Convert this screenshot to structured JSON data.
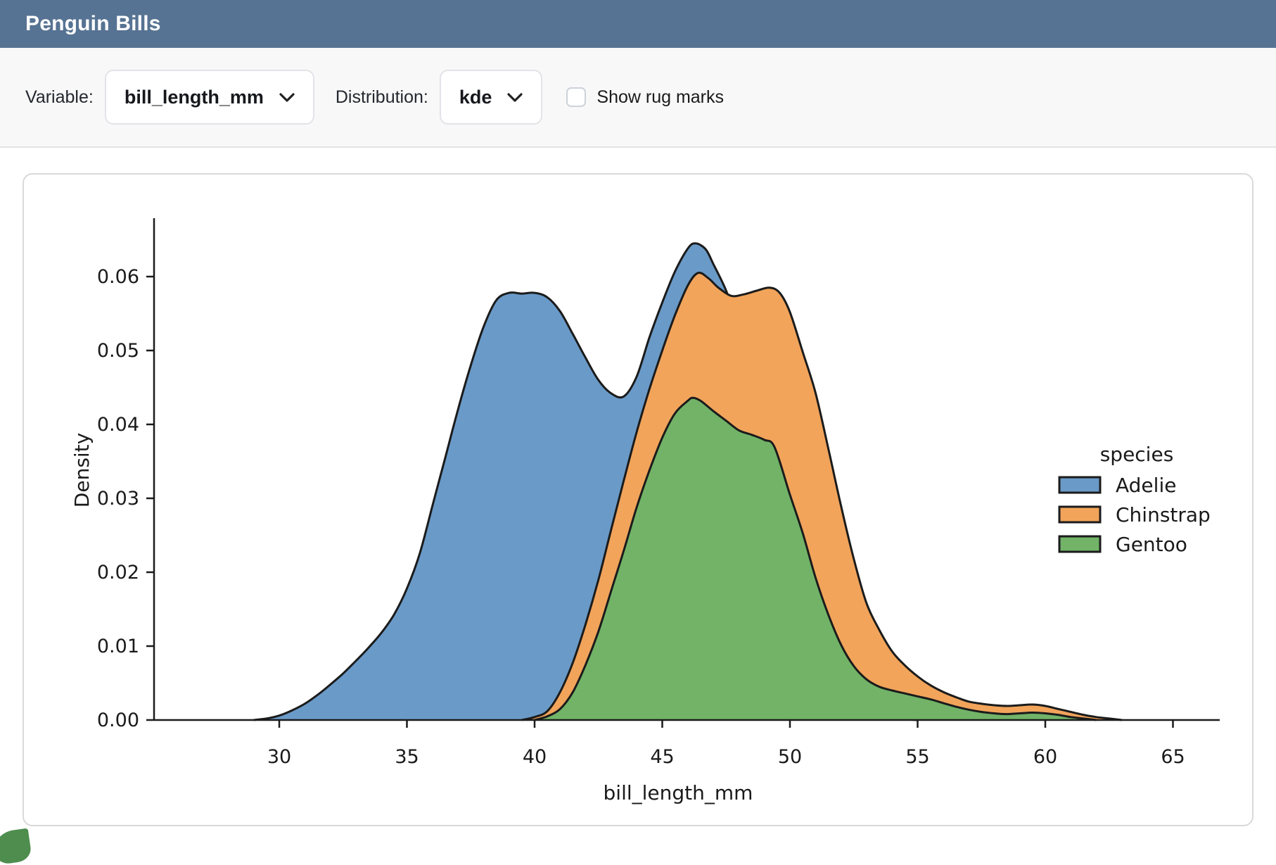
{
  "app": {
    "title": "Penguin Bills"
  },
  "toolbar": {
    "variable_label": "Variable:",
    "variable_value": "bill_length_mm",
    "distribution_label": "Distribution:",
    "distribution_value": "kde",
    "rug_label": "Show rug marks",
    "rug_checked": false
  },
  "colors": {
    "header_bg": "#577393",
    "toolbar_bg": "#f8f8f8",
    "card_border": "#d9d9d9",
    "axis_text": "#1a1a1a",
    "curve_line": "#1b1b1b"
  },
  "chart_data": {
    "type": "area",
    "kind": "kde-density",
    "xlabel": "bill_length_mm",
    "ylabel": "Density",
    "xlim": [
      25,
      67
    ],
    "ylim": [
      0,
      0.068
    ],
    "grid": false,
    "xticks": [
      30,
      35,
      40,
      45,
      50,
      55,
      60,
      65
    ],
    "yticks": {
      "values": [
        0,
        0.01,
        0.02,
        0.03,
        0.04,
        0.05,
        0.06
      ],
      "labels": [
        "0.00",
        "0.01",
        "0.02",
        "0.03",
        "0.04",
        "0.05",
        "0.06"
      ]
    },
    "legend": {
      "title": "species",
      "position": "right"
    },
    "line_color": "#1b1b1b",
    "series": [
      {
        "name": "Adelie",
        "color": "#6A9AC8",
        "points": [
          [
            29.0,
            0
          ],
          [
            29.5,
            0.0002
          ],
          [
            30.0,
            0.0006
          ],
          [
            30.5,
            0.0013
          ],
          [
            31.0,
            0.0022
          ],
          [
            31.5,
            0.0034
          ],
          [
            32.0,
            0.0048
          ],
          [
            32.5,
            0.0063
          ],
          [
            33.0,
            0.008
          ],
          [
            33.5,
            0.0098
          ],
          [
            34.0,
            0.0118
          ],
          [
            34.5,
            0.0143
          ],
          [
            35.0,
            0.0178
          ],
          [
            35.5,
            0.0225
          ],
          [
            36.0,
            0.029
          ],
          [
            36.5,
            0.0355
          ],
          [
            37.0,
            0.042
          ],
          [
            37.5,
            0.048
          ],
          [
            38.0,
            0.0532
          ],
          [
            38.5,
            0.0568
          ],
          [
            39.0,
            0.0578
          ],
          [
            39.5,
            0.0577
          ],
          [
            40.0,
            0.0578
          ],
          [
            40.5,
            0.0572
          ],
          [
            41.0,
            0.0553
          ],
          [
            41.5,
            0.0522
          ],
          [
            42.0,
            0.049
          ],
          [
            42.5,
            0.046
          ],
          [
            43.0,
            0.0442
          ],
          [
            43.5,
            0.0438
          ],
          [
            44.0,
            0.0465
          ],
          [
            44.5,
            0.0518
          ],
          [
            45.0,
            0.0565
          ],
          [
            45.5,
            0.0607
          ],
          [
            46.0,
            0.0638
          ],
          [
            46.3,
            0.0645
          ],
          [
            46.7,
            0.0637
          ],
          [
            47.0,
            0.0617
          ],
          [
            47.5,
            0.0581
          ],
          [
            48.0,
            0.0532
          ],
          [
            48.5,
            0.047
          ],
          [
            49.0,
            0.0398
          ],
          [
            49.5,
            0.0325
          ],
          [
            50.0,
            0.0252
          ],
          [
            50.5,
            0.0185
          ],
          [
            51.0,
            0.0128
          ],
          [
            51.5,
            0.0083
          ],
          [
            52.0,
            0.005
          ],
          [
            52.5,
            0.0028
          ],
          [
            53.0,
            0.0015
          ],
          [
            53.5,
            0.0007
          ],
          [
            54.0,
            0.0003
          ],
          [
            54.5,
            0.0001
          ],
          [
            55.0,
            0
          ]
        ]
      },
      {
        "name": "Chinstrap",
        "color": "#F2A45B",
        "points": [
          [
            39.5,
            0
          ],
          [
            40.0,
            0.0004
          ],
          [
            40.5,
            0.0012
          ],
          [
            41.0,
            0.0038
          ],
          [
            41.5,
            0.0078
          ],
          [
            42.0,
            0.013
          ],
          [
            42.5,
            0.019
          ],
          [
            43.0,
            0.0258
          ],
          [
            43.5,
            0.0325
          ],
          [
            44.0,
            0.039
          ],
          [
            44.5,
            0.0448
          ],
          [
            45.0,
            0.05
          ],
          [
            45.5,
            0.0548
          ],
          [
            46.0,
            0.0588
          ],
          [
            46.4,
            0.0605
          ],
          [
            46.8,
            0.0598
          ],
          [
            47.2,
            0.0585
          ],
          [
            47.7,
            0.0574
          ],
          [
            48.2,
            0.0576
          ],
          [
            48.7,
            0.0581
          ],
          [
            49.2,
            0.0585
          ],
          [
            49.6,
            0.0578
          ],
          [
            50.0,
            0.0552
          ],
          [
            50.5,
            0.0498
          ],
          [
            51.0,
            0.0443
          ],
          [
            51.5,
            0.0368
          ],
          [
            52.0,
            0.029
          ],
          [
            52.5,
            0.0218
          ],
          [
            53.0,
            0.0158
          ],
          [
            53.5,
            0.0122
          ],
          [
            54.0,
            0.0093
          ],
          [
            54.5,
            0.0074
          ],
          [
            55.0,
            0.0059
          ],
          [
            55.5,
            0.0047
          ],
          [
            56.0,
            0.0038
          ],
          [
            56.5,
            0.0031
          ],
          [
            57.0,
            0.0025
          ],
          [
            57.5,
            0.0022
          ],
          [
            58.0,
            0.002
          ],
          [
            58.5,
            0.0019
          ],
          [
            59.0,
            0.002
          ],
          [
            59.5,
            0.0021
          ],
          [
            60.0,
            0.0019
          ],
          [
            60.5,
            0.0015
          ],
          [
            61.0,
            0.0011
          ],
          [
            61.5,
            0.0007
          ],
          [
            62.0,
            0.0004
          ],
          [
            62.5,
            0.0002
          ],
          [
            63.0,
            0
          ]
        ]
      },
      {
        "name": "Gentoo",
        "color": "#72B368",
        "points": [
          [
            40.0,
            0
          ],
          [
            40.5,
            0.0005
          ],
          [
            41.0,
            0.0015
          ],
          [
            41.5,
            0.0038
          ],
          [
            42.0,
            0.0075
          ],
          [
            42.5,
            0.012
          ],
          [
            43.0,
            0.0175
          ],
          [
            43.5,
            0.023
          ],
          [
            44.0,
            0.0288
          ],
          [
            44.5,
            0.0338
          ],
          [
            45.0,
            0.0382
          ],
          [
            45.5,
            0.0415
          ],
          [
            46.0,
            0.0432
          ],
          [
            46.2,
            0.0436
          ],
          [
            46.5,
            0.0432
          ],
          [
            47.0,
            0.0418
          ],
          [
            47.5,
            0.0405
          ],
          [
            48.0,
            0.0392
          ],
          [
            48.5,
            0.0386
          ],
          [
            49.0,
            0.0379
          ],
          [
            49.4,
            0.0369
          ],
          [
            50.0,
            0.0305
          ],
          [
            50.5,
            0.0253
          ],
          [
            51.0,
            0.0193
          ],
          [
            51.5,
            0.0143
          ],
          [
            52.0,
            0.0102
          ],
          [
            52.5,
            0.0073
          ],
          [
            53.0,
            0.0055
          ],
          [
            53.5,
            0.0045
          ],
          [
            54.0,
            0.004
          ],
          [
            54.5,
            0.0036
          ],
          [
            55.0,
            0.0032
          ],
          [
            55.5,
            0.0028
          ],
          [
            56.0,
            0.0023
          ],
          [
            56.5,
            0.0018
          ],
          [
            57.0,
            0.0014
          ],
          [
            57.5,
            0.0011
          ],
          [
            58.0,
            0.0009
          ],
          [
            58.5,
            0.0008
          ],
          [
            59.0,
            0.0009
          ],
          [
            59.5,
            0.001
          ],
          [
            60.0,
            0.0009
          ],
          [
            60.5,
            0.0007
          ],
          [
            61.0,
            0.0004
          ],
          [
            61.5,
            0.0002
          ],
          [
            62.0,
            0
          ]
        ]
      }
    ]
  }
}
